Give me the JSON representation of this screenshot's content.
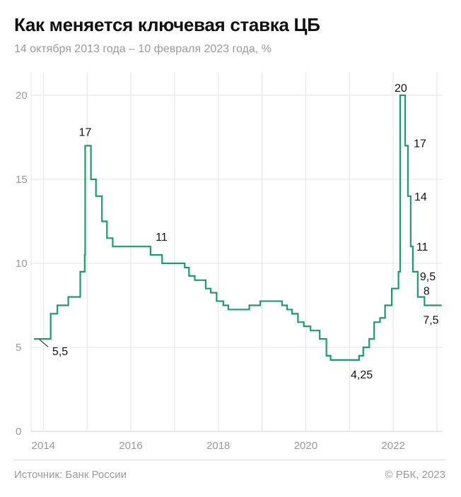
{
  "header": {
    "title": "Как меняется ключевая ставка ЦБ",
    "subtitle": "14 октября 2013 года – 10 февраля 2023 года, %"
  },
  "footer": {
    "source": "Источник: Банк России",
    "copyright": "© РБК, 2023"
  },
  "colors": {
    "line": "#1a9b70",
    "grid": "#e3e3e3",
    "axis_text": "#9a9a9a"
  },
  "chart_data": {
    "type": "line",
    "step": true,
    "title": "Как меняется ключевая ставка ЦБ",
    "subtitle": "14 октября 2013 года – 10 февраля 2023 года, %",
    "xlabel": "",
    "ylabel": "",
    "xlim": [
      "2013-10-14",
      "2023-02-10"
    ],
    "ylim": [
      0,
      20
    ],
    "yticks": [
      0,
      5,
      10,
      15,
      20
    ],
    "xticks": [
      "2014",
      "2016",
      "2018",
      "2020",
      "2022"
    ],
    "grid": true,
    "series": [
      {
        "x": [
          "2013-10-14",
          "2014-03-03",
          "2014-04-28",
          "2014-07-28",
          "2014-11-05",
          "2014-12-12",
          "2014-12-16",
          "2015-02-02",
          "2015-03-16",
          "2015-05-05",
          "2015-06-16",
          "2015-08-03",
          "2016-06-14",
          "2016-09-19",
          "2017-03-27",
          "2017-05-02",
          "2017-06-19",
          "2017-09-18",
          "2017-10-30",
          "2017-12-18",
          "2018-02-12",
          "2018-03-26",
          "2018-09-17",
          "2018-12-17",
          "2019-06-17",
          "2019-07-29",
          "2019-09-09",
          "2019-10-28",
          "2019-12-16",
          "2020-02-10",
          "2020-04-27",
          "2020-06-22",
          "2020-07-27",
          "2021-03-22",
          "2021-04-26",
          "2021-06-15",
          "2021-07-26",
          "2021-09-13",
          "2021-10-25",
          "2021-12-20",
          "2022-02-14",
          "2022-02-28",
          "2022-04-11",
          "2022-05-04",
          "2022-05-27",
          "2022-06-14",
          "2022-07-25",
          "2022-09-19",
          "2023-02-10"
        ],
        "y": [
          5.5,
          7,
          7.5,
          8,
          9.5,
          10.5,
          17,
          15,
          14,
          12.5,
          11.5,
          11,
          10.5,
          10,
          9.75,
          9.25,
          9,
          8.5,
          8.25,
          7.75,
          7.5,
          7.25,
          7.5,
          7.75,
          7.5,
          7.25,
          7,
          6.5,
          6.25,
          6,
          5.5,
          4.5,
          4.25,
          4.5,
          5,
          5.5,
          6.5,
          6.75,
          7.5,
          8.5,
          9.5,
          20,
          17,
          14,
          11,
          9.5,
          8,
          7.5,
          7.5
        ]
      }
    ],
    "annotations": [
      {
        "text": "5,5",
        "x": "2013-10-14",
        "y": 5.5
      },
      {
        "text": "17",
        "x": "2014-12-16",
        "y": 17
      },
      {
        "text": "11",
        "x": "2015-08-03",
        "y": 11
      },
      {
        "text": "4,25",
        "x": "2020-07-27",
        "y": 4.25
      },
      {
        "text": "20",
        "x": "2022-02-28",
        "y": 20
      },
      {
        "text": "17",
        "x": "2022-04-11",
        "y": 17
      },
      {
        "text": "14",
        "x": "2022-05-04",
        "y": 14
      },
      {
        "text": "11",
        "x": "2022-05-27",
        "y": 11
      },
      {
        "text": "9,5",
        "x": "2022-06-14",
        "y": 9.5
      },
      {
        "text": "8",
        "x": "2022-07-25",
        "y": 8
      },
      {
        "text": "7,5",
        "x": "2022-09-19",
        "y": 7.5
      }
    ]
  }
}
